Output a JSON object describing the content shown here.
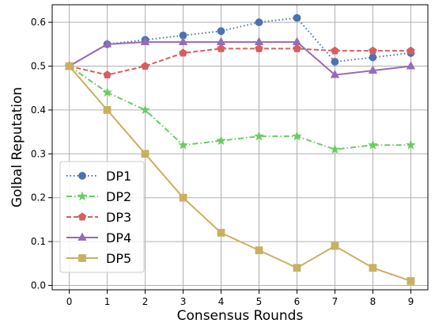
{
  "chart_data": {
    "type": "line",
    "xlabel": "Consensus Rounds",
    "ylabel": "Golbal Reputation",
    "x": [
      0,
      1,
      2,
      3,
      4,
      5,
      6,
      7,
      8,
      9
    ],
    "xlim": [
      -0.45,
      9.45
    ],
    "ylim": [
      -0.01,
      0.64
    ],
    "xticks": [
      "0",
      "1",
      "2",
      "3",
      "4",
      "5",
      "6",
      "7",
      "8",
      "9"
    ],
    "yticks": [
      "0.0",
      "0.1",
      "0.2",
      "0.3",
      "0.4",
      "0.5",
      "0.6"
    ],
    "grid": true,
    "legend_position": "lower-left",
    "series": [
      {
        "name": "DP1",
        "color": "#4c72b0",
        "dash": "dotted",
        "marker": "circle",
        "values": [
          0.5,
          0.55,
          0.56,
          0.57,
          0.58,
          0.6,
          0.61,
          0.51,
          0.52,
          0.53
        ]
      },
      {
        "name": "DP2",
        "color": "#6acc64",
        "dash": "dashdot",
        "marker": "star",
        "values": [
          0.5,
          0.44,
          0.4,
          0.32,
          0.33,
          0.34,
          0.34,
          0.31,
          0.32,
          0.32
        ]
      },
      {
        "name": "DP3",
        "color": "#d65f5f",
        "dash": "dashed",
        "marker": "pentagon",
        "values": [
          0.5,
          0.48,
          0.5,
          0.53,
          0.54,
          0.54,
          0.54,
          0.535,
          0.535,
          0.535
        ]
      },
      {
        "name": "DP4",
        "color": "#956cb4",
        "dash": "solid",
        "marker": "triangle",
        "values": [
          0.5,
          0.55,
          0.555,
          0.555,
          0.555,
          0.555,
          0.555,
          0.48,
          0.49,
          0.5
        ]
      },
      {
        "name": "DP5",
        "color": "#c9b060",
        "dash": "solid",
        "marker": "square",
        "values": [
          0.5,
          0.4,
          0.3,
          0.2,
          0.12,
          0.08,
          0.04,
          0.09,
          0.04,
          0.01
        ]
      }
    ]
  }
}
